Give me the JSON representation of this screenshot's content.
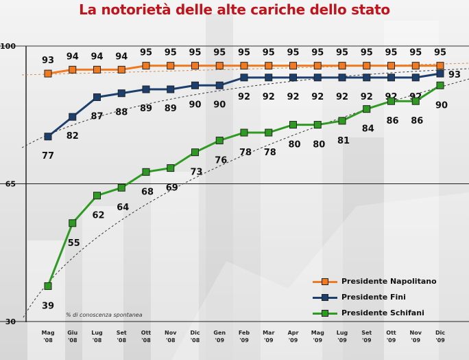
{
  "title": "La notorietà delle alte cariche dello stato",
  "note": "% di conoscenza spontanea",
  "colors": {
    "title": "#c0141c",
    "napolitano": "#f07a22",
    "fini": "#1c3f6e",
    "schifani": "#2f9a22"
  },
  "chart_data": {
    "type": "line",
    "title": "La notorietà delle alte cariche dello stato",
    "categories": [
      [
        "Mag",
        "'08"
      ],
      [
        "Giu",
        "'08"
      ],
      [
        "Lug",
        "'08"
      ],
      [
        "Set",
        "'08"
      ],
      [
        "Ott",
        "'08"
      ],
      [
        "Nov",
        "'08"
      ],
      [
        "Dic",
        "'08"
      ],
      [
        "Gen",
        "'09"
      ],
      [
        "Feb",
        "'09"
      ],
      [
        "Mar",
        "'09"
      ],
      [
        "Apr",
        "'09"
      ],
      [
        "Mag",
        "'09"
      ],
      [
        "Lug",
        "'09"
      ],
      [
        "Set",
        "'09"
      ],
      [
        "Ott",
        "'09"
      ],
      [
        "Nov",
        "'09"
      ],
      [
        "Dic",
        "'09"
      ]
    ],
    "ylim": [
      30,
      100
    ],
    "yticks": [
      "30",
      "65",
      "100"
    ],
    "grid": false,
    "trendlines": true,
    "legend_position": "bottom-right",
    "series": [
      {
        "name": "Presidente Napolitano",
        "color": "#f07a22",
        "values": [
          93,
          94,
          94,
          94,
          95,
          95,
          95,
          95,
          95,
          95,
          95,
          95,
          95,
          95,
          95,
          95,
          95
        ]
      },
      {
        "name": "Presidente Fini",
        "color": "#1c3f6e",
        "values": [
          77,
          82,
          87,
          88,
          89,
          89,
          90,
          90,
          92,
          92,
          92,
          92,
          92,
          92,
          92,
          92,
          93
        ]
      },
      {
        "name": "Presidente Schifani",
        "color": "#2f9a22",
        "values": [
          39,
          55,
          62,
          64,
          68,
          69,
          73,
          76,
          78,
          78,
          80,
          80,
          81,
          84,
          86,
          86,
          90
        ]
      }
    ]
  }
}
